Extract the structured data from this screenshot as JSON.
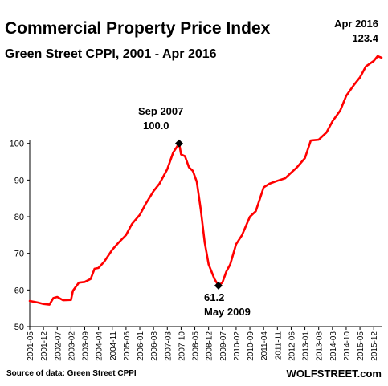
{
  "title": "Commercial Property Price Index",
  "subtitle": "Green Street CPPI, 2001 - Apr 2016",
  "source": "Source of data: Green Street CPPI",
  "brand": "WOLFSTREET.com",
  "colors": {
    "line": "#ff0000",
    "marker": "#000000",
    "axis": "#000000"
  },
  "annotations": {
    "peak": {
      "date": "Sep 2007",
      "value": "100.0"
    },
    "trough": {
      "value": "61.2",
      "date": "May 2009"
    },
    "latest": {
      "date": "Apr 2016",
      "value": "123.4"
    }
  },
  "chart_data": {
    "type": "line",
    "title": "Commercial Property Price Index",
    "subtitle": "Green Street CPPI, 2001 - Apr 2016",
    "xlabel": "",
    "ylabel": "",
    "ylim": [
      50,
      126
    ],
    "yticks": [
      50,
      60,
      70,
      80,
      90,
      100
    ],
    "grid": false,
    "x_tick_labels": [
      "2001-05",
      "2001-12",
      "2002-07",
      "2003-02",
      "2003-09",
      "2004-04",
      "2004-11",
      "2005-06",
      "2006-01",
      "2006-08",
      "2007-03",
      "2007-10",
      "2008-05",
      "2008-12",
      "2009-07",
      "2010-02",
      "2010-09",
      "2011-04",
      "2011-11",
      "2012-06",
      "2013-01",
      "2013-08",
      "2014-03",
      "2014-10",
      "2015-05",
      "2015-12"
    ],
    "points": [
      [
        "2001-05",
        57.0
      ],
      [
        "2001-09",
        56.6
      ],
      [
        "2001-12",
        56.2
      ],
      [
        "2002-03",
        56.0
      ],
      [
        "2002-05",
        57.8
      ],
      [
        "2002-07",
        58.1
      ],
      [
        "2002-10",
        57.2
      ],
      [
        "2003-02",
        57.3
      ],
      [
        "2003-03",
        59.8
      ],
      [
        "2003-06",
        62.0
      ],
      [
        "2003-09",
        62.2
      ],
      [
        "2003-12",
        63.0
      ],
      [
        "2004-02",
        65.8
      ],
      [
        "2004-04",
        66.0
      ],
      [
        "2004-07",
        67.8
      ],
      [
        "2004-11",
        71.0
      ],
      [
        "2005-02",
        72.8
      ],
      [
        "2005-06",
        75.0
      ],
      [
        "2005-09",
        78.0
      ],
      [
        "2006-01",
        80.5
      ],
      [
        "2006-04",
        83.5
      ],
      [
        "2006-08",
        87.0
      ],
      [
        "2006-11",
        89.0
      ],
      [
        "2007-03",
        93.0
      ],
      [
        "2007-06",
        97.5
      ],
      [
        "2007-09",
        100.0
      ],
      [
        "2007-10",
        97.0
      ],
      [
        "2007-12",
        96.5
      ],
      [
        "2008-02",
        93.5
      ],
      [
        "2008-04",
        92.5
      ],
      [
        "2008-06",
        89.5
      ],
      [
        "2008-08",
        82.0
      ],
      [
        "2008-10",
        73.0
      ],
      [
        "2008-12",
        67.0
      ],
      [
        "2009-03",
        63.0
      ],
      [
        "2009-05",
        61.2
      ],
      [
        "2009-07",
        62.0
      ],
      [
        "2009-09",
        65.0
      ],
      [
        "2009-11",
        67.0
      ],
      [
        "2010-02",
        72.5
      ],
      [
        "2010-05",
        75.0
      ],
      [
        "2010-09",
        80.0
      ],
      [
        "2010-12",
        81.5
      ],
      [
        "2011-04",
        88.0
      ],
      [
        "2011-07",
        89.0
      ],
      [
        "2011-11",
        89.8
      ],
      [
        "2012-03",
        90.5
      ],
      [
        "2012-06",
        92.0
      ],
      [
        "2012-09",
        93.5
      ],
      [
        "2013-01",
        96.0
      ],
      [
        "2013-04",
        100.8
      ],
      [
        "2013-08",
        101.0
      ],
      [
        "2013-12",
        103.0
      ],
      [
        "2014-03",
        106.0
      ],
      [
        "2014-07",
        109.0
      ],
      [
        "2014-10",
        113.0
      ],
      [
        "2015-02",
        116.0
      ],
      [
        "2015-05",
        118.0
      ],
      [
        "2015-08",
        121.0
      ],
      [
        "2015-12",
        122.5
      ],
      [
        "2016-02",
        123.8
      ],
      [
        "2016-04",
        123.4
      ]
    ],
    "highlights": [
      {
        "x": "2007-09",
        "y": 100.0
      },
      {
        "x": "2009-05",
        "y": 61.2
      }
    ]
  }
}
